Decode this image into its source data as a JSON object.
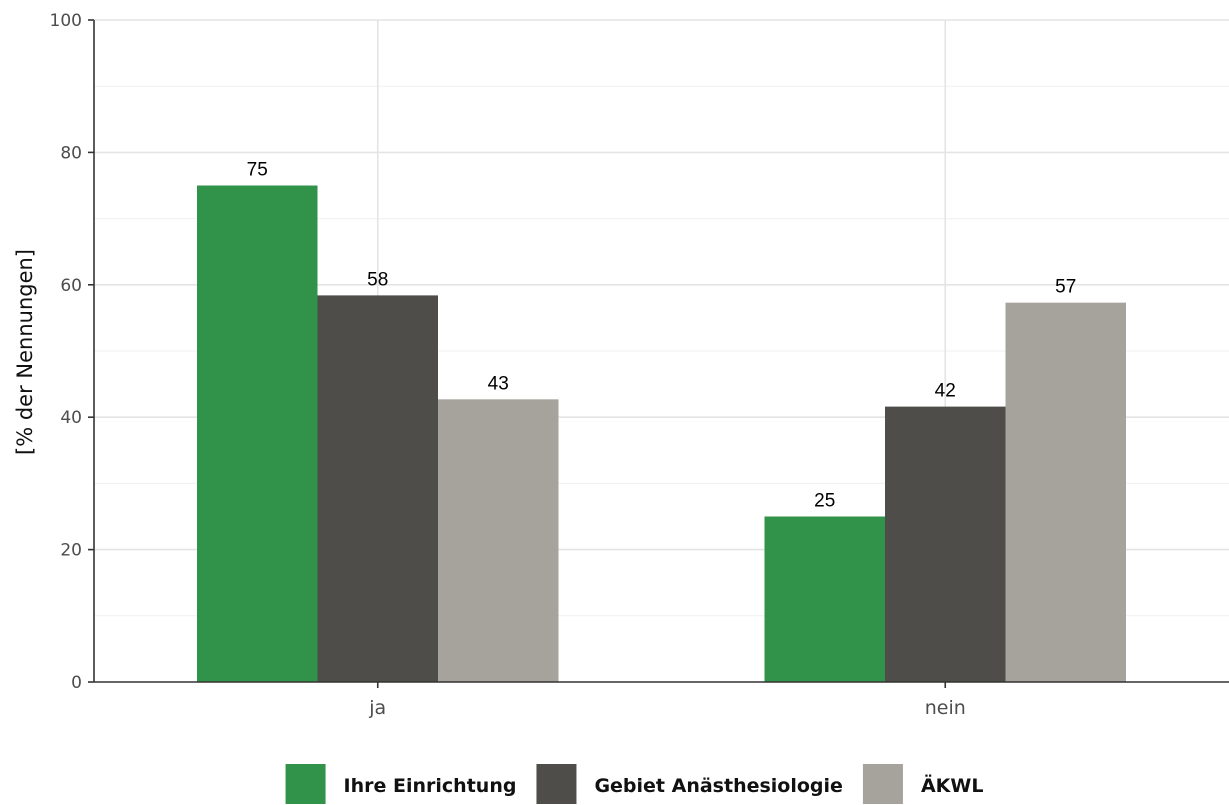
{
  "chart_data": {
    "type": "bar",
    "categories": [
      "ja",
      "nein"
    ],
    "series": [
      {
        "name": "Ihre Einrichtung",
        "values": [
          75,
          25
        ],
        "labels": [
          "75",
          "25"
        ],
        "color": "#31934a"
      },
      {
        "name": "Gebiet Anästhesiologie",
        "values": [
          58.4,
          41.6
        ],
        "labels": [
          "58",
          "42"
        ],
        "color": "#4e4d49"
      },
      {
        "name": "ÄKWL",
        "values": [
          42.7,
          57.3
        ],
        "labels": [
          "43",
          "57"
        ],
        "color": "#a5a39c"
      }
    ],
    "title": "",
    "xlabel": "",
    "ylabel": "[% der Nennungen]",
    "ylim": [
      0,
      100
    ],
    "yticks": [
      0,
      20,
      40,
      60,
      80,
      100
    ],
    "grid": true,
    "legend_position": "bottom"
  }
}
